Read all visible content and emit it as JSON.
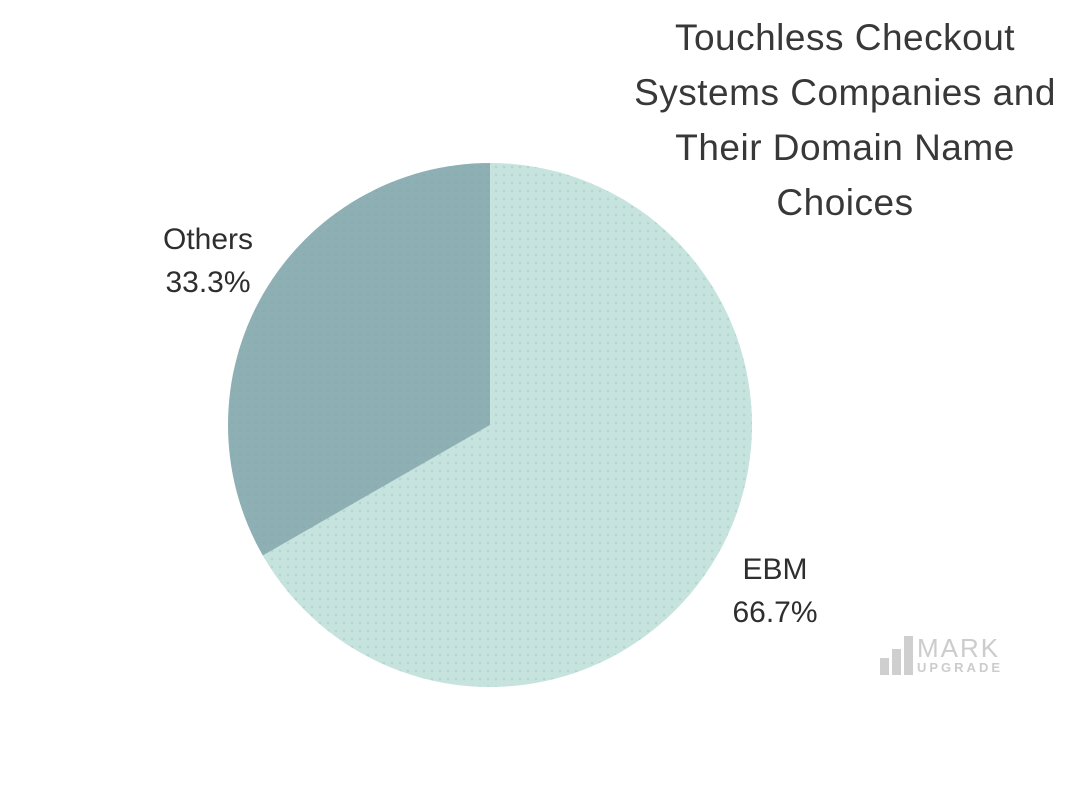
{
  "title": {
    "text": "Touchless Checkout Systems Companies and Their Domain Name Choices",
    "lines": [
      "Touchless Checkout",
      "Systems Companies and",
      "Their Domain Name",
      "Choices"
    ],
    "color": "#383838"
  },
  "chart_data": {
    "type": "pie",
    "title": "Touchless Checkout Systems Companies and Their Domain Name Choices",
    "categories": [
      "EBM",
      "Others"
    ],
    "values": [
      66.7,
      33.3
    ],
    "slices": [
      {
        "label": "EBM",
        "value": 66.7,
        "percent_label": "66.7%",
        "color": "#c6e3de"
      },
      {
        "label": "Others",
        "value": 33.3,
        "percent_label": "33.3%",
        "color": "#8eb0b4"
      }
    ],
    "start_angle_deg": 0,
    "direction": "clockwise",
    "legend_position": "none",
    "labels_outside": true,
    "background": "#ffffff"
  },
  "watermark": {
    "brand_top": "MARK",
    "brand_bottom": "UPGRADE",
    "icon": "bar-chart-icon",
    "color": "#cccccc"
  }
}
